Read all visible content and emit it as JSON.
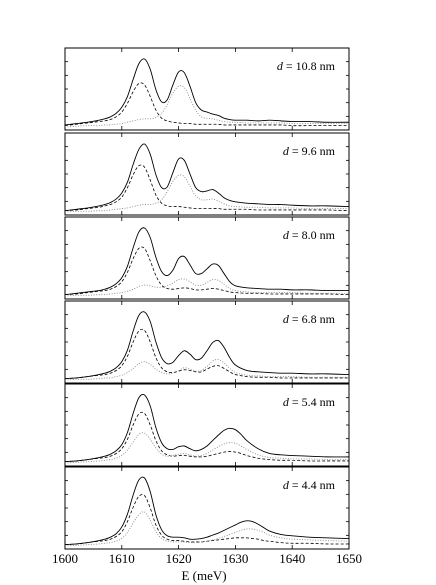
{
  "chart_data": {
    "type": "line",
    "xlabel": "E (meV)",
    "ylabel": "",
    "xlim": [
      1600,
      1650
    ],
    "x_ticks": [
      "1600",
      "1610",
      "1620",
      "1630",
      "1640",
      "1650"
    ],
    "grid": false,
    "legend": "none",
    "panels": [
      {
        "label": "d = 10.8 nm",
        "x": [
          1600,
          1602,
          1604,
          1606,
          1607,
          1608,
          1609,
          1610,
          1611,
          1612,
          1613,
          1614,
          1615,
          1616,
          1617,
          1618,
          1619,
          1620,
          1621,
          1622,
          1623,
          1624,
          1625,
          1626,
          1627,
          1628,
          1629,
          1630,
          1632,
          1634,
          1636,
          1638,
          1640,
          1643,
          1646,
          1650
        ],
        "series": [
          {
            "style": "solid",
            "values": [
              0.03,
              0.05,
              0.07,
              0.1,
              0.12,
              0.15,
              0.2,
              0.29,
              0.45,
              0.7,
              0.93,
              1.0,
              0.85,
              0.55,
              0.37,
              0.4,
              0.62,
              0.81,
              0.8,
              0.6,
              0.36,
              0.25,
              0.22,
              0.19,
              0.17,
              0.13,
              0.11,
              0.1,
              0.1,
              0.09,
              0.1,
              0.09,
              0.08,
              0.08,
              0.07,
              0.07
            ]
          },
          {
            "style": "dashed",
            "values": [
              0.02,
              0.04,
              0.06,
              0.08,
              0.09,
              0.11,
              0.15,
              0.22,
              0.35,
              0.52,
              0.64,
              0.62,
              0.45,
              0.25,
              0.13,
              0.09,
              0.07,
              0.06,
              0.05,
              0.05,
              0.04,
              0.04,
              0.04,
              0.04,
              0.04,
              0.03,
              0.03,
              0.03,
              0.03,
              0.03,
              0.03,
              0.03,
              0.02,
              0.02,
              0.02,
              0.02
            ]
          },
          {
            "style": "dotted",
            "values": [
              0.0,
              0.01,
              0.02,
              0.02,
              0.03,
              0.03,
              0.04,
              0.05,
              0.07,
              0.09,
              0.11,
              0.12,
              0.12,
              0.14,
              0.2,
              0.33,
              0.5,
              0.6,
              0.58,
              0.42,
              0.25,
              0.15,
              0.13,
              0.12,
              0.1,
              0.08,
              0.07,
              0.07,
              0.06,
              0.06,
              0.06,
              0.06,
              0.05,
              0.05,
              0.05,
              0.05
            ]
          }
        ]
      },
      {
        "label": "d = 9.6 nm",
        "x": [
          1600,
          1602,
          1604,
          1606,
          1607,
          1608,
          1609,
          1610,
          1611,
          1612,
          1613,
          1614,
          1615,
          1616,
          1617,
          1618,
          1619,
          1620,
          1621,
          1622,
          1623,
          1624,
          1625,
          1626,
          1627,
          1628,
          1629,
          1630,
          1632,
          1634,
          1636,
          1638,
          1640,
          1643,
          1646,
          1650
        ],
        "series": [
          {
            "style": "solid",
            "values": [
              0.02,
              0.04,
              0.06,
              0.09,
              0.11,
              0.14,
              0.19,
              0.28,
              0.44,
              0.7,
              0.92,
              1.0,
              0.85,
              0.55,
              0.36,
              0.37,
              0.58,
              0.78,
              0.76,
              0.56,
              0.36,
              0.3,
              0.31,
              0.33,
              0.28,
              0.21,
              0.17,
              0.15,
              0.13,
              0.12,
              0.11,
              0.11,
              0.1,
              0.09,
              0.09,
              0.08
            ]
          },
          {
            "style": "dashed",
            "values": [
              0.02,
              0.03,
              0.05,
              0.07,
              0.09,
              0.11,
              0.15,
              0.22,
              0.36,
              0.55,
              0.68,
              0.66,
              0.47,
              0.25,
              0.13,
              0.09,
              0.08,
              0.08,
              0.07,
              0.06,
              0.05,
              0.05,
              0.05,
              0.05,
              0.05,
              0.04,
              0.04,
              0.04,
              0.04,
              0.03,
              0.03,
              0.03,
              0.03,
              0.03,
              0.03,
              0.02
            ]
          },
          {
            "style": "dotted",
            "values": [
              0.0,
              0.01,
              0.01,
              0.02,
              0.02,
              0.03,
              0.04,
              0.05,
              0.06,
              0.08,
              0.1,
              0.11,
              0.11,
              0.13,
              0.18,
              0.3,
              0.45,
              0.54,
              0.52,
              0.38,
              0.24,
              0.18,
              0.18,
              0.19,
              0.16,
              0.12,
              0.09,
              0.08,
              0.07,
              0.07,
              0.06,
              0.06,
              0.06,
              0.05,
              0.05,
              0.05
            ]
          }
        ]
      },
      {
        "label": "d = 8.0 nm",
        "x": [
          1600,
          1602,
          1604,
          1606,
          1607,
          1608,
          1609,
          1610,
          1611,
          1612,
          1613,
          1614,
          1615,
          1616,
          1617,
          1618,
          1619,
          1620,
          1621,
          1622,
          1623,
          1624,
          1625,
          1626,
          1627,
          1628,
          1629,
          1630,
          1632,
          1634,
          1636,
          1638,
          1640,
          1643,
          1646,
          1650
        ],
        "series": [
          {
            "style": "solid",
            "values": [
              0.02,
              0.04,
              0.06,
              0.08,
              0.1,
              0.13,
              0.18,
              0.27,
              0.44,
              0.71,
              0.94,
              1.0,
              0.86,
              0.57,
              0.36,
              0.3,
              0.38,
              0.55,
              0.58,
              0.46,
              0.33,
              0.33,
              0.4,
              0.47,
              0.45,
              0.33,
              0.21,
              0.15,
              0.12,
              0.11,
              0.1,
              0.1,
              0.09,
              0.09,
              0.08,
              0.08
            ]
          },
          {
            "style": "dashed",
            "values": [
              0.02,
              0.03,
              0.05,
              0.07,
              0.08,
              0.1,
              0.14,
              0.21,
              0.35,
              0.55,
              0.7,
              0.7,
              0.52,
              0.3,
              0.16,
              0.11,
              0.1,
              0.11,
              0.12,
              0.11,
              0.09,
              0.09,
              0.1,
              0.11,
              0.1,
              0.08,
              0.06,
              0.05,
              0.04,
              0.04,
              0.03,
              0.03,
              0.03,
              0.03,
              0.03,
              0.02
            ]
          },
          {
            "style": "dotted",
            "values": [
              0.0,
              0.01,
              0.01,
              0.02,
              0.02,
              0.03,
              0.04,
              0.05,
              0.07,
              0.1,
              0.14,
              0.16,
              0.15,
              0.13,
              0.13,
              0.15,
              0.19,
              0.24,
              0.25,
              0.21,
              0.16,
              0.16,
              0.2,
              0.24,
              0.23,
              0.17,
              0.11,
              0.08,
              0.06,
              0.05,
              0.05,
              0.05,
              0.05,
              0.04,
              0.04,
              0.04
            ]
          }
        ]
      },
      {
        "label": "d = 6.8 nm",
        "x": [
          1600,
          1602,
          1604,
          1606,
          1607,
          1608,
          1609,
          1610,
          1611,
          1612,
          1613,
          1614,
          1615,
          1616,
          1617,
          1618,
          1619,
          1620,
          1621,
          1622,
          1623,
          1624,
          1625,
          1626,
          1627,
          1628,
          1629,
          1630,
          1632,
          1634,
          1636,
          1638,
          1640,
          1643,
          1646,
          1650
        ],
        "series": [
          {
            "style": "solid",
            "values": [
              0.02,
              0.03,
              0.05,
              0.08,
              0.1,
              0.13,
              0.18,
              0.27,
              0.44,
              0.72,
              0.95,
              1.0,
              0.86,
              0.56,
              0.33,
              0.24,
              0.26,
              0.36,
              0.43,
              0.38,
              0.3,
              0.32,
              0.43,
              0.55,
              0.58,
              0.48,
              0.33,
              0.22,
              0.14,
              0.12,
              0.11,
              0.1,
              0.1,
              0.09,
              0.09,
              0.08
            ]
          },
          {
            "style": "dashed",
            "values": [
              0.02,
              0.03,
              0.05,
              0.07,
              0.08,
              0.1,
              0.14,
              0.21,
              0.35,
              0.56,
              0.72,
              0.73,
              0.56,
              0.33,
              0.18,
              0.12,
              0.11,
              0.13,
              0.15,
              0.14,
              0.12,
              0.12,
              0.16,
              0.2,
              0.21,
              0.17,
              0.12,
              0.08,
              0.05,
              0.04,
              0.04,
              0.03,
              0.03,
              0.03,
              0.03,
              0.03
            ]
          },
          {
            "style": "dotted",
            "values": [
              0.0,
              0.01,
              0.01,
              0.02,
              0.03,
              0.03,
              0.05,
              0.07,
              0.11,
              0.17,
              0.24,
              0.27,
              0.23,
              0.16,
              0.11,
              0.09,
              0.1,
              0.14,
              0.18,
              0.16,
              0.13,
              0.14,
              0.2,
              0.28,
              0.3,
              0.25,
              0.17,
              0.11,
              0.07,
              0.06,
              0.05,
              0.05,
              0.05,
              0.04,
              0.04,
              0.04
            ]
          }
        ]
      },
      {
        "label": "d = 5.4 nm",
        "x": [
          1600,
          1602,
          1604,
          1606,
          1607,
          1608,
          1609,
          1610,
          1611,
          1612,
          1613,
          1614,
          1615,
          1616,
          1617,
          1618,
          1619,
          1620,
          1621,
          1622,
          1623,
          1624,
          1625,
          1626,
          1627,
          1628,
          1629,
          1630,
          1631,
          1632,
          1634,
          1636,
          1638,
          1640,
          1643,
          1646,
          1650
        ],
        "series": [
          {
            "style": "solid",
            "values": [
              0.02,
              0.03,
              0.05,
              0.08,
              0.1,
              0.13,
              0.18,
              0.27,
              0.45,
              0.73,
              0.96,
              1.0,
              0.84,
              0.52,
              0.3,
              0.21,
              0.2,
              0.24,
              0.25,
              0.21,
              0.18,
              0.2,
              0.25,
              0.33,
              0.41,
              0.48,
              0.51,
              0.49,
              0.42,
              0.33,
              0.21,
              0.14,
              0.12,
              0.11,
              0.1,
              0.09,
              0.09
            ]
          },
          {
            "style": "dashed",
            "values": [
              0.02,
              0.03,
              0.05,
              0.07,
              0.08,
              0.1,
              0.14,
              0.21,
              0.35,
              0.56,
              0.72,
              0.73,
              0.56,
              0.33,
              0.18,
              0.12,
              0.1,
              0.11,
              0.11,
              0.1,
              0.09,
              0.09,
              0.1,
              0.12,
              0.14,
              0.16,
              0.17,
              0.16,
              0.14,
              0.11,
              0.07,
              0.05,
              0.04,
              0.04,
              0.03,
              0.03,
              0.03
            ]
          },
          {
            "style": "dotted",
            "values": [
              0.0,
              0.01,
              0.02,
              0.03,
              0.04,
              0.05,
              0.07,
              0.11,
              0.19,
              0.31,
              0.42,
              0.44,
              0.35,
              0.22,
              0.13,
              0.1,
              0.11,
              0.13,
              0.14,
              0.12,
              0.1,
              0.11,
              0.14,
              0.19,
              0.24,
              0.28,
              0.3,
              0.29,
              0.25,
              0.2,
              0.12,
              0.08,
              0.07,
              0.06,
              0.06,
              0.05,
              0.05
            ]
          }
        ]
      },
      {
        "label": "d = 4.4 nm",
        "x": [
          1600,
          1602,
          1604,
          1606,
          1607,
          1608,
          1609,
          1610,
          1611,
          1612,
          1613,
          1614,
          1615,
          1616,
          1617,
          1618,
          1619,
          1620,
          1621,
          1622,
          1623,
          1624,
          1625,
          1626,
          1627,
          1628,
          1629,
          1630,
          1631,
          1632,
          1633,
          1634,
          1635,
          1636,
          1638,
          1640,
          1643,
          1646,
          1650
        ],
        "series": [
          {
            "style": "solid",
            "values": [
              0.02,
              0.03,
              0.05,
              0.08,
              0.1,
              0.13,
              0.18,
              0.28,
              0.47,
              0.75,
              0.97,
              1.0,
              0.8,
              0.46,
              0.24,
              0.15,
              0.13,
              0.13,
              0.12,
              0.1,
              0.1,
              0.11,
              0.13,
              0.16,
              0.19,
              0.23,
              0.27,
              0.31,
              0.35,
              0.37,
              0.36,
              0.32,
              0.27,
              0.22,
              0.17,
              0.15,
              0.13,
              0.12,
              0.11
            ]
          },
          {
            "style": "dashed",
            "values": [
              0.02,
              0.03,
              0.05,
              0.07,
              0.08,
              0.1,
              0.14,
              0.21,
              0.36,
              0.57,
              0.73,
              0.74,
              0.56,
              0.31,
              0.16,
              0.1,
              0.08,
              0.08,
              0.07,
              0.06,
              0.06,
              0.06,
              0.07,
              0.08,
              0.09,
              0.1,
              0.11,
              0.12,
              0.12,
              0.12,
              0.11,
              0.1,
              0.08,
              0.07,
              0.05,
              0.04,
              0.04,
              0.03,
              0.03
            ]
          },
          {
            "style": "dotted",
            "values": [
              0.0,
              0.01,
              0.02,
              0.03,
              0.04,
              0.05,
              0.07,
              0.11,
              0.2,
              0.34,
              0.46,
              0.5,
              0.38,
              0.21,
              0.11,
              0.07,
              0.06,
              0.06,
              0.06,
              0.05,
              0.05,
              0.06,
              0.07,
              0.09,
              0.11,
              0.14,
              0.17,
              0.2,
              0.23,
              0.25,
              0.25,
              0.23,
              0.2,
              0.16,
              0.12,
              0.1,
              0.09,
              0.08,
              0.07
            ]
          }
        ]
      }
    ]
  }
}
